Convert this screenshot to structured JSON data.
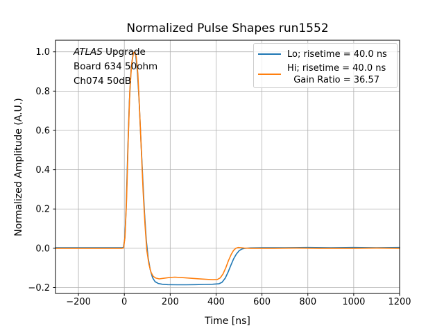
{
  "figure": {
    "title": "Normalized Pulse Shapes run1552",
    "xlabel": "Time [ns]",
    "ylabel": "Normalized Amplitude (A.U.)"
  },
  "annotation": {
    "line1_italic": "ATLAS",
    "line1_rest": " Upgrade",
    "line2": "Board 634 50ohm",
    "line3": "Ch074 50dB"
  },
  "legend": {
    "items": [
      {
        "label": "Lo; risetime = 40.0 ns"
      },
      {
        "label_line1": "Hi; risetime = 40.0 ns",
        "label_line2": "Gain Ratio = 36.57"
      }
    ]
  },
  "chart_data": {
    "type": "line",
    "title": "Normalized Pulse Shapes run1552",
    "xlabel": "Time [ns]",
    "ylabel": "Normalized Amplitude (A.U.)",
    "xlim": [
      -300,
      1200
    ],
    "ylim": [
      -0.23,
      1.059
    ],
    "grid": true,
    "grid_color": "#b0b0b0",
    "spine_color": "#000000",
    "legend_position": "upper right",
    "xticks": {
      "values": [
        -200,
        0,
        200,
        400,
        600,
        800,
        1000,
        1200
      ],
      "labels": [
        "−200",
        "0",
        "200",
        "400",
        "600",
        "800",
        "1000",
        "1200"
      ]
    },
    "yticks": {
      "values": [
        -0.2,
        0.0,
        0.2,
        0.4,
        0.6,
        0.8,
        1.0
      ],
      "labels": [
        "−0.2",
        "0.0",
        "0.2",
        "0.4",
        "0.6",
        "0.8",
        "1.0"
      ]
    },
    "series": [
      {
        "id": "lo",
        "name": "Lo; risetime = 40.0 ns",
        "color": "#1f77b4",
        "points": [
          [
            -300,
            0.003
          ],
          [
            -200,
            0.003
          ],
          [
            -100,
            0.003
          ],
          [
            -40,
            0.003
          ],
          [
            -10,
            0.003
          ],
          [
            -4,
            0.005
          ],
          [
            2,
            0.05
          ],
          [
            8,
            0.2
          ],
          [
            15,
            0.5
          ],
          [
            22,
            0.75
          ],
          [
            30,
            0.92
          ],
          [
            38,
            0.99
          ],
          [
            44,
            1.0
          ],
          [
            50,
            0.98
          ],
          [
            57,
            0.9
          ],
          [
            64,
            0.76
          ],
          [
            72,
            0.56
          ],
          [
            80,
            0.36
          ],
          [
            88,
            0.18
          ],
          [
            96,
            0.04
          ],
          [
            104,
            -0.05
          ],
          [
            113,
            -0.11
          ],
          [
            123,
            -0.15
          ],
          [
            134,
            -0.17
          ],
          [
            148,
            -0.179
          ],
          [
            165,
            -0.183
          ],
          [
            190,
            -0.185
          ],
          [
            230,
            -0.186
          ],
          [
            270,
            -0.186
          ],
          [
            310,
            -0.185
          ],
          [
            350,
            -0.184
          ],
          [
            385,
            -0.183
          ],
          [
            412,
            -0.181
          ],
          [
            426,
            -0.173
          ],
          [
            440,
            -0.152
          ],
          [
            452,
            -0.122
          ],
          [
            464,
            -0.088
          ],
          [
            476,
            -0.055
          ],
          [
            488,
            -0.03
          ],
          [
            500,
            -0.013
          ],
          [
            512,
            -0.004
          ],
          [
            526,
            0.0
          ],
          [
            550,
            0.002
          ],
          [
            600,
            0.003
          ],
          [
            700,
            0.003
          ],
          [
            800,
            0.004
          ],
          [
            900,
            0.003
          ],
          [
            1000,
            0.004
          ],
          [
            1100,
            0.003
          ],
          [
            1200,
            0.004
          ]
        ]
      },
      {
        "id": "hi",
        "name": "Hi; risetime = 40.0 ns\nGain Ratio = 36.57",
        "color": "#ff7f0e",
        "points": [
          [
            -300,
            0.0
          ],
          [
            -200,
            0.0
          ],
          [
            -100,
            0.0
          ],
          [
            -40,
            0.0
          ],
          [
            -10,
            0.0
          ],
          [
            -3,
            0.002
          ],
          [
            3,
            0.06
          ],
          [
            10,
            0.25
          ],
          [
            17,
            0.55
          ],
          [
            24,
            0.8
          ],
          [
            32,
            0.94
          ],
          [
            40,
            0.995
          ],
          [
            46,
            1.0
          ],
          [
            52,
            0.975
          ],
          [
            59,
            0.89
          ],
          [
            66,
            0.72
          ],
          [
            74,
            0.5
          ],
          [
            82,
            0.29
          ],
          [
            90,
            0.12
          ],
          [
            98,
            -0.01
          ],
          [
            107,
            -0.08
          ],
          [
            116,
            -0.122
          ],
          [
            126,
            -0.143
          ],
          [
            138,
            -0.152
          ],
          [
            152,
            -0.156
          ],
          [
            170,
            -0.153
          ],
          [
            195,
            -0.149
          ],
          [
            220,
            -0.147
          ],
          [
            250,
            -0.149
          ],
          [
            285,
            -0.152
          ],
          [
            320,
            -0.155
          ],
          [
            355,
            -0.158
          ],
          [
            385,
            -0.16
          ],
          [
            405,
            -0.159
          ],
          [
            418,
            -0.151
          ],
          [
            430,
            -0.131
          ],
          [
            442,
            -0.1
          ],
          [
            454,
            -0.063
          ],
          [
            466,
            -0.031
          ],
          [
            476,
            -0.011
          ],
          [
            486,
            0.0
          ],
          [
            496,
            0.004
          ],
          [
            508,
            0.003
          ],
          [
            522,
            0.001
          ],
          [
            550,
            0.0
          ],
          [
            650,
            0.0
          ],
          [
            750,
            0.001
          ],
          [
            850,
            0.0
          ],
          [
            1000,
            0.0
          ],
          [
            1100,
            0.001
          ],
          [
            1200,
            0.0
          ]
        ]
      }
    ]
  }
}
